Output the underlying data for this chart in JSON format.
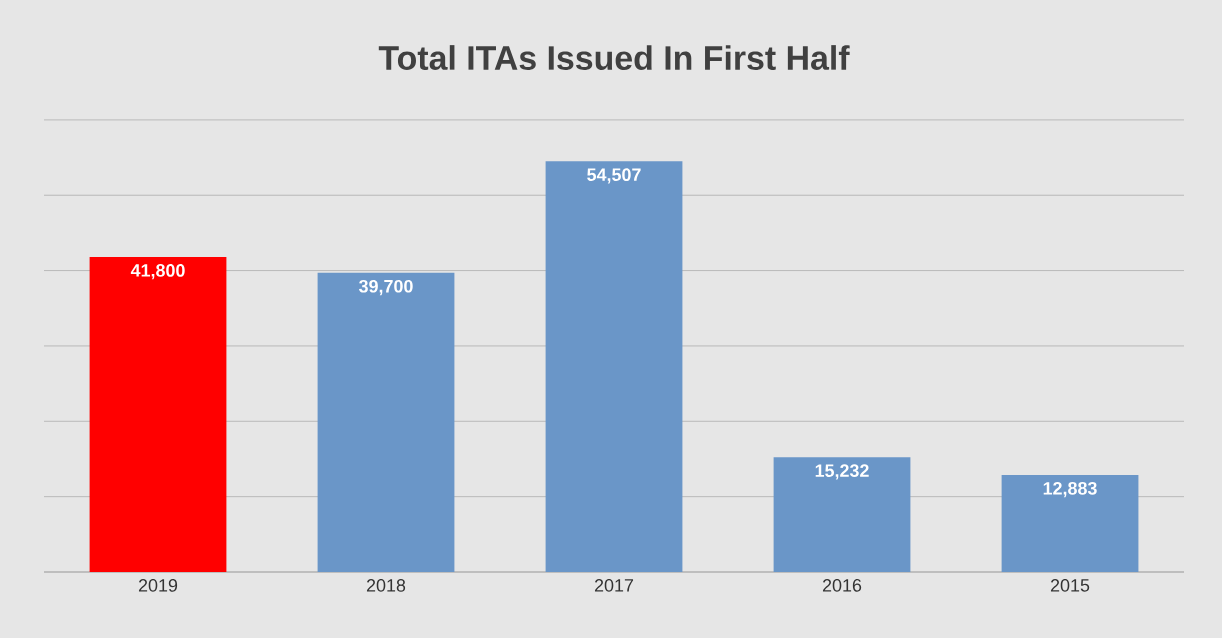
{
  "chart_data": {
    "type": "bar",
    "title": "Total ITAs Issued In First Half",
    "categories": [
      "2019",
      "2018",
      "2017",
      "2016",
      "2015"
    ],
    "values": [
      41800,
      39700,
      54507,
      15232,
      12883
    ],
    "value_labels": [
      "41,800",
      "39,700",
      "54,507",
      "15,232",
      "12,883"
    ],
    "colors": [
      "#ff0000",
      "#6a96c8",
      "#6a96c8",
      "#6a96c8",
      "#6a96c8"
    ],
    "grid": "y",
    "tick_labels": "x"
  }
}
